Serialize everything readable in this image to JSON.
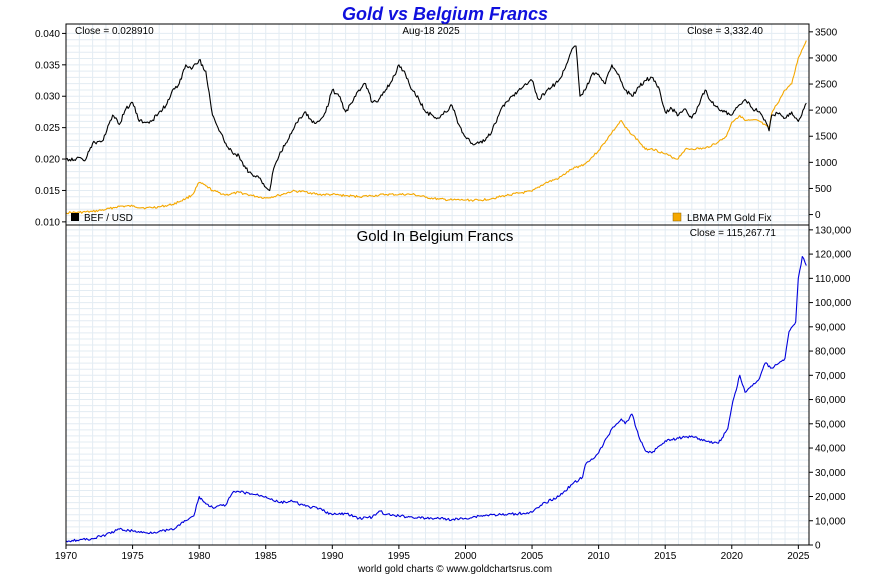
{
  "title": "Gold vs Belgium Francs",
  "footer": "world gold charts © www.goldchartsrus.com",
  "colors": {
    "title": "#1010dd",
    "bef": "#000000",
    "gold": "#f5a800",
    "gold_bef": "#0000dd",
    "grid": "#e3ecf3"
  },
  "chart_data": [
    {
      "type": "line",
      "panel": "top",
      "annotations": {
        "close_left": "Close = 0.028910",
        "date": "Aug-18  2025",
        "close_right": "Close = 3,332.40"
      },
      "legend": {
        "placement": "bottom",
        "bef_label": "BEF / USD",
        "gold_label": "LBMA PM Gold Fix"
      },
      "xlim": [
        1970,
        2025.8
      ],
      "x_ticks": [
        "1970",
        "1975",
        "1980",
        "1985",
        "1990",
        "1995",
        "2000",
        "2005",
        "2010",
        "2015",
        "2020",
        "2025"
      ],
      "y_left": {
        "ylim": [
          0.0095,
          0.0415
        ],
        "ticks": [
          "0.010",
          "0.015",
          "0.020",
          "0.025",
          "0.030",
          "0.035",
          "0.040"
        ]
      },
      "y_right": {
        "ylim": [
          -200,
          3650
        ],
        "ticks": [
          "0",
          "500",
          "1000",
          "1500",
          "2000",
          "2500",
          "3000",
          "3500"
        ]
      },
      "grid": true,
      "series": [
        {
          "name": "BEF / USD",
          "axis": "left",
          "x": [
            1970,
            1971.5,
            1972,
            1972.8,
            1973.5,
            1974,
            1974.5,
            1975,
            1975.5,
            1976,
            1976.5,
            1977,
            1977.5,
            1978,
            1978.5,
            1979,
            1979.5,
            1980,
            1980.5,
            1981,
            1981.5,
            1982,
            1982.5,
            1983,
            1983.5,
            1984,
            1984.5,
            1985,
            1985.3,
            1985.6,
            1986,
            1986.5,
            1987,
            1987.5,
            1988,
            1988.5,
            1989,
            1989.5,
            1990,
            1990.5,
            1991,
            1991.5,
            1992,
            1992.5,
            1993,
            1993.5,
            1994,
            1994.5,
            1995,
            1995.5,
            1996,
            1996.5,
            1997,
            1997.5,
            1998,
            1998.5,
            1999,
            1999.5,
            2000,
            2000.5,
            2001,
            2001.5,
            2002,
            2002.5,
            2003,
            2003.5,
            2004,
            2004.5,
            2005,
            2005.5,
            2006,
            2006.5,
            2007,
            2007.5,
            2008,
            2008.3,
            2008.6,
            2009,
            2009.5,
            2010,
            2010.5,
            2011,
            2011.5,
            2012,
            2012.5,
            2013,
            2013.5,
            2014,
            2014.5,
            2015,
            2015.5,
            2016,
            2016.5,
            2017,
            2017.5,
            2018,
            2018.5,
            2019,
            2019.5,
            2020,
            2020.5,
            2021,
            2021.5,
            2022,
            2022.5,
            2022.8,
            2023,
            2023.5,
            2024,
            2024.5,
            2025,
            2025.6
          ],
          "values": [
            0.02,
            0.02,
            0.0225,
            0.023,
            0.027,
            0.0255,
            0.028,
            0.029,
            0.026,
            0.0258,
            0.0262,
            0.0275,
            0.0285,
            0.031,
            0.032,
            0.035,
            0.0345,
            0.0358,
            0.034,
            0.027,
            0.0245,
            0.0225,
            0.021,
            0.0205,
            0.0185,
            0.0175,
            0.017,
            0.0155,
            0.015,
            0.0185,
            0.0205,
            0.0225,
            0.0245,
            0.0265,
            0.0275,
            0.0258,
            0.026,
            0.0275,
            0.031,
            0.03,
            0.0275,
            0.029,
            0.031,
            0.032,
            0.029,
            0.0295,
            0.031,
            0.0325,
            0.035,
            0.0335,
            0.031,
            0.0295,
            0.0275,
            0.027,
            0.0265,
            0.0275,
            0.0285,
            0.0255,
            0.0235,
            0.0225,
            0.0225,
            0.023,
            0.0245,
            0.027,
            0.029,
            0.03,
            0.031,
            0.032,
            0.0325,
            0.0295,
            0.0305,
            0.0315,
            0.0325,
            0.0345,
            0.0375,
            0.038,
            0.03,
            0.031,
            0.0335,
            0.0335,
            0.032,
            0.035,
            0.0335,
            0.031,
            0.03,
            0.0315,
            0.0325,
            0.033,
            0.0315,
            0.0275,
            0.028,
            0.027,
            0.028,
            0.0265,
            0.0285,
            0.031,
            0.029,
            0.028,
            0.0275,
            0.027,
            0.0285,
            0.0295,
            0.0282,
            0.0275,
            0.0262,
            0.0245,
            0.027,
            0.0272,
            0.0265,
            0.0275,
            0.026,
            0.0289
          ]
        },
        {
          "name": "LBMA PM Gold Fix",
          "axis": "right",
          "x": [
            1970,
            1971,
            1972,
            1973,
            1974,
            1975,
            1976,
            1977,
            1978,
            1979,
            1979.5,
            1980,
            1980.5,
            1981,
            1982,
            1983,
            1984,
            1985,
            1986,
            1987,
            1988,
            1989,
            1990,
            1991,
            1992,
            1993,
            1994,
            1995,
            1996,
            1997,
            1998,
            1999,
            2000,
            2001,
            2002,
            2003,
            2004,
            2005,
            2006,
            2007,
            2008,
            2009,
            2010,
            2011,
            2011.7,
            2012,
            2013,
            2013.5,
            2014,
            2015,
            2015.9,
            2016.5,
            2017,
            2018,
            2019,
            2019.6,
            2020,
            2020.6,
            2021,
            2022,
            2022.8,
            2023,
            2024,
            2024.5,
            2025,
            2025.6
          ],
          "values": [
            35,
            41,
            58,
            97,
            159,
            161,
            125,
            148,
            193,
            306,
            380,
            615,
            550,
            460,
            376,
            424,
            361,
            317,
            368,
            447,
            437,
            381,
            383,
            362,
            344,
            360,
            384,
            384,
            388,
            331,
            294,
            279,
            279,
            271,
            310,
            363,
            409,
            445,
            604,
            695,
            872,
            972,
            1225,
            1572,
            1800,
            1669,
            1410,
            1250,
            1266,
            1160,
            1060,
            1250,
            1257,
            1268,
            1393,
            1500,
            1770,
            1900,
            1800,
            1800,
            1650,
            1940,
            2385,
            2500,
            3000,
            3332
          ]
        }
      ]
    },
    {
      "type": "line",
      "panel": "bottom",
      "title": "Gold In Belgium Francs",
      "annotations": {
        "close_right": "Close = 115,267.71"
      },
      "xlim": [
        1970,
        2025.8
      ],
      "y_right": {
        "ylim": [
          0,
          132000
        ],
        "ticks": [
          "0",
          "10,000",
          "20,000",
          "30,000",
          "40,000",
          "50,000",
          "60,000",
          "70,000",
          "80,000",
          "90,000",
          "100,000",
          "110,000",
          "120,000",
          "130,000"
        ]
      },
      "grid": true,
      "series": [
        {
          "name": "Gold In Belgium Francs",
          "x": [
            1970,
            1971,
            1972,
            1973,
            1974,
            1975,
            1976,
            1977,
            1978,
            1979,
            1979.6,
            1980,
            1980.5,
            1981,
            1982,
            1982.5,
            1983,
            1984,
            1985,
            1986,
            1987,
            1988,
            1989,
            1990,
            1991,
            1992,
            1993,
            1993.6,
            1994,
            1995,
            1996,
            1997,
            1998,
            1999,
            2000,
            2001,
            2002,
            2003,
            2004,
            2005,
            2006,
            2007,
            2008,
            2008.8,
            2009,
            2010,
            2011,
            2011.7,
            2012,
            2012.5,
            2013,
            2013.5,
            2014,
            2015,
            2016,
            2017,
            2018,
            2019,
            2019.7,
            2020,
            2020.6,
            2021,
            2022,
            2022.5,
            2023,
            2024,
            2024.3,
            2024.8,
            2025,
            2025.3,
            2025.6
          ],
          "values": [
            1750,
            2050,
            2600,
            4200,
            6500,
            5800,
            5000,
            5600,
            6300,
            10000,
            12000,
            20000,
            17000,
            15500,
            16500,
            21500,
            22000,
            21000,
            20000,
            17500,
            18000,
            16000,
            15000,
            12500,
            13000,
            11000,
            11500,
            14000,
            12500,
            12000,
            11500,
            11000,
            11000,
            10500,
            11000,
            12000,
            12500,
            12500,
            13000,
            13500,
            17500,
            20000,
            25000,
            28000,
            33000,
            38000,
            48000,
            52000,
            50000,
            54000,
            45000,
            39000,
            38000,
            43000,
            44000,
            45000,
            43000,
            42000,
            48000,
            57000,
            70000,
            63000,
            68000,
            75000,
            73000,
            77000,
            88000,
            92000,
            110000,
            119000,
            115268
          ]
        }
      ]
    }
  ]
}
